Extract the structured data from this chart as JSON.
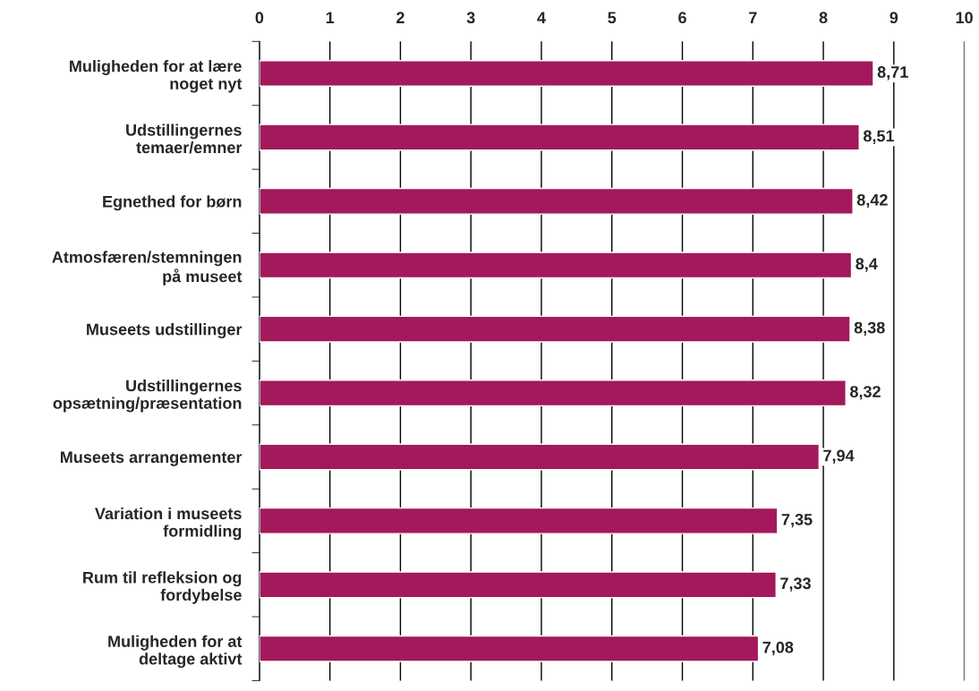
{
  "chart_data": {
    "type": "bar",
    "orientation": "horizontal",
    "categories": [
      "Muligheden for at lære\nnoget nyt",
      "Udstillingernes\ntemaer/emner",
      "Egnethed for børn",
      "Atmosfæren/stemningen\npå museet",
      "Museets udstillinger",
      "Udstillingernes\nopsætning/præsentation",
      "Museets arrangementer",
      "Variation i museets\nformidling",
      "Rum til refleksion og\nfordybelse",
      "Muligheden for at\ndeltage aktivt"
    ],
    "values": [
      8.71,
      8.51,
      8.42,
      8.4,
      8.38,
      8.32,
      7.94,
      7.35,
      7.33,
      7.08
    ],
    "value_labels": [
      "8,71",
      "8,51",
      "8,42",
      "8,4",
      "8,38",
      "8,32",
      "7,94",
      "7,35",
      "7,33",
      "7,08"
    ],
    "color": "#a3195b",
    "xlim": [
      0,
      10
    ],
    "xticks": [
      0,
      1,
      2,
      3,
      4,
      5,
      6,
      7,
      8,
      9,
      10
    ],
    "grid": "x"
  }
}
